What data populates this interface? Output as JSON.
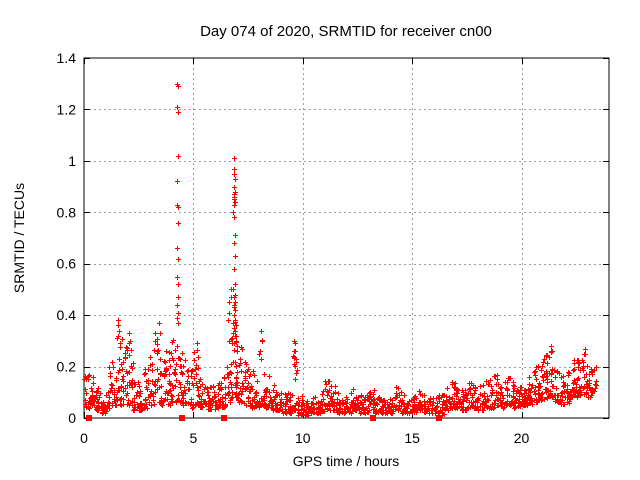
{
  "figure": {
    "background": "#ffffff",
    "border_color": "#000000",
    "grid_color": "#9e9e9e"
  },
  "chart_data": {
    "type": "scatter",
    "title": "Day 074 of 2020, SRMTID for receiver cn00",
    "xlabel": "GPS time / hours",
    "ylabel": "SRMTID / TECUs",
    "xlim": [
      0,
      24
    ],
    "ylim": [
      0,
      1.4
    ],
    "x_tick_values": [
      0,
      5,
      10,
      15,
      20
    ],
    "x_tick_labels": [
      "0",
      "5",
      "10",
      "15",
      "20"
    ],
    "y_tick_values": [
      0,
      0.2,
      0.4,
      0.6,
      0.8,
      1,
      1.2,
      1.4
    ],
    "y_tick_labels": [
      "0",
      "0.2",
      "0.4",
      "0.6",
      "0.8",
      "1",
      "1.2",
      "1.4"
    ],
    "grid": true,
    "legend": "none",
    "marker_color": "#ff0000",
    "seed": 20200074,
    "series": [
      {
        "name": "SRMTID",
        "marker": "plus",
        "band_bins_format": "[x_start_hr, x_end_hr, n_points, y_min, y_max]",
        "band_bins": [
          [
            0.0,
            0.25,
            20,
            0.04,
            0.17
          ],
          [
            0.25,
            0.5,
            20,
            0.05,
            0.16
          ],
          [
            0.5,
            0.75,
            18,
            0.03,
            0.12
          ],
          [
            0.75,
            1.0,
            18,
            0.02,
            0.1
          ],
          [
            1.0,
            1.25,
            20,
            0.04,
            0.2
          ],
          [
            1.25,
            1.5,
            20,
            0.05,
            0.24
          ],
          [
            1.5,
            1.75,
            22,
            0.05,
            0.34
          ],
          [
            1.75,
            2.0,
            20,
            0.05,
            0.28
          ],
          [
            2.0,
            2.25,
            20,
            0.05,
            0.3
          ],
          [
            2.25,
            2.5,
            18,
            0.03,
            0.15
          ],
          [
            2.5,
            2.75,
            18,
            0.03,
            0.12
          ],
          [
            2.75,
            3.0,
            18,
            0.04,
            0.2
          ],
          [
            3.0,
            3.25,
            18,
            0.05,
            0.28
          ],
          [
            3.25,
            3.5,
            20,
            0.05,
            0.34
          ],
          [
            3.5,
            3.75,
            18,
            0.05,
            0.24
          ],
          [
            3.75,
            4.0,
            20,
            0.05,
            0.28
          ],
          [
            4.0,
            4.25,
            20,
            0.06,
            0.31
          ],
          [
            4.25,
            4.5,
            20,
            0.06,
            0.28
          ],
          [
            4.5,
            4.75,
            18,
            0.05,
            0.24
          ],
          [
            4.75,
            5.0,
            18,
            0.04,
            0.19
          ],
          [
            5.0,
            5.25,
            18,
            0.05,
            0.27
          ],
          [
            5.25,
            5.5,
            18,
            0.04,
            0.17
          ],
          [
            5.5,
            5.75,
            18,
            0.03,
            0.14
          ],
          [
            5.75,
            6.0,
            18,
            0.03,
            0.13
          ],
          [
            6.0,
            6.25,
            18,
            0.04,
            0.14
          ],
          [
            6.25,
            6.5,
            18,
            0.04,
            0.17
          ],
          [
            6.5,
            6.75,
            20,
            0.06,
            0.32
          ],
          [
            6.75,
            7.0,
            22,
            0.08,
            0.42
          ],
          [
            7.0,
            7.25,
            20,
            0.06,
            0.28
          ],
          [
            7.25,
            7.5,
            18,
            0.05,
            0.24
          ],
          [
            7.5,
            7.75,
            18,
            0.04,
            0.19
          ],
          [
            7.75,
            8.0,
            18,
            0.04,
            0.17
          ],
          [
            8.0,
            8.25,
            18,
            0.05,
            0.31
          ],
          [
            8.25,
            8.5,
            18,
            0.04,
            0.19
          ],
          [
            8.5,
            8.75,
            18,
            0.03,
            0.13
          ],
          [
            8.75,
            9.0,
            18,
            0.03,
            0.11
          ],
          [
            9.0,
            9.25,
            18,
            0.02,
            0.1
          ],
          [
            9.25,
            9.5,
            18,
            0.02,
            0.11
          ],
          [
            9.5,
            9.75,
            20,
            0.03,
            0.27
          ],
          [
            9.75,
            10.0,
            18,
            0.01,
            0.09
          ],
          [
            10.0,
            10.25,
            16,
            0.01,
            0.07
          ],
          [
            10.25,
            10.5,
            16,
            0.02,
            0.08
          ],
          [
            10.5,
            10.75,
            16,
            0.02,
            0.09
          ],
          [
            10.75,
            11.0,
            16,
            0.02,
            0.11
          ],
          [
            11.0,
            11.25,
            18,
            0.03,
            0.15
          ],
          [
            11.25,
            11.5,
            18,
            0.03,
            0.13
          ],
          [
            11.5,
            11.75,
            16,
            0.02,
            0.1
          ],
          [
            11.75,
            12.0,
            16,
            0.02,
            0.09
          ],
          [
            12.0,
            12.25,
            16,
            0.02,
            0.1
          ],
          [
            12.25,
            12.5,
            16,
            0.03,
            0.12
          ],
          [
            12.5,
            12.75,
            16,
            0.02,
            0.09
          ],
          [
            12.75,
            13.0,
            16,
            0.02,
            0.09
          ],
          [
            13.0,
            13.25,
            16,
            0.03,
            0.11
          ],
          [
            13.25,
            13.5,
            16,
            0.02,
            0.09
          ],
          [
            13.5,
            13.75,
            16,
            0.02,
            0.09
          ],
          [
            13.75,
            14.0,
            16,
            0.02,
            0.08
          ],
          [
            14.0,
            14.25,
            16,
            0.02,
            0.09
          ],
          [
            14.25,
            14.5,
            16,
            0.03,
            0.12
          ],
          [
            14.5,
            14.75,
            16,
            0.02,
            0.09
          ],
          [
            14.75,
            15.0,
            16,
            0.02,
            0.08
          ],
          [
            15.0,
            15.25,
            16,
            0.02,
            0.09
          ],
          [
            15.25,
            15.5,
            16,
            0.03,
            0.11
          ],
          [
            15.5,
            15.75,
            16,
            0.02,
            0.09
          ],
          [
            15.75,
            16.0,
            16,
            0.02,
            0.08
          ],
          [
            16.0,
            16.25,
            16,
            0.02,
            0.09
          ],
          [
            16.25,
            16.5,
            16,
            0.01,
            0.09
          ],
          [
            16.5,
            16.75,
            16,
            0.03,
            0.12
          ],
          [
            16.75,
            17.0,
            18,
            0.04,
            0.14
          ],
          [
            17.0,
            17.25,
            18,
            0.04,
            0.13
          ],
          [
            17.25,
            17.5,
            18,
            0.03,
            0.12
          ],
          [
            17.5,
            17.75,
            18,
            0.04,
            0.15
          ],
          [
            17.75,
            18.0,
            18,
            0.04,
            0.14
          ],
          [
            18.0,
            18.25,
            18,
            0.03,
            0.13
          ],
          [
            18.25,
            18.5,
            18,
            0.04,
            0.15
          ],
          [
            18.5,
            18.75,
            18,
            0.04,
            0.16
          ],
          [
            18.75,
            19.0,
            18,
            0.05,
            0.17
          ],
          [
            19.0,
            19.25,
            18,
            0.04,
            0.14
          ],
          [
            19.25,
            19.5,
            18,
            0.05,
            0.18
          ],
          [
            19.5,
            19.75,
            18,
            0.04,
            0.16
          ],
          [
            19.75,
            20.0,
            18,
            0.04,
            0.14
          ],
          [
            20.0,
            20.25,
            18,
            0.05,
            0.15
          ],
          [
            20.25,
            20.5,
            18,
            0.05,
            0.17
          ],
          [
            20.5,
            20.75,
            18,
            0.06,
            0.22
          ],
          [
            20.75,
            21.0,
            20,
            0.07,
            0.24
          ],
          [
            21.0,
            21.25,
            20,
            0.07,
            0.25
          ],
          [
            21.25,
            21.5,
            20,
            0.08,
            0.27
          ],
          [
            21.5,
            21.75,
            18,
            0.06,
            0.2
          ],
          [
            21.75,
            22.0,
            18,
            0.05,
            0.17
          ],
          [
            22.0,
            22.25,
            18,
            0.06,
            0.19
          ],
          [
            22.25,
            22.5,
            20,
            0.08,
            0.24
          ],
          [
            22.5,
            22.75,
            20,
            0.08,
            0.23
          ],
          [
            22.75,
            23.0,
            20,
            0.09,
            0.25
          ],
          [
            23.0,
            23.2,
            14,
            0.08,
            0.23
          ],
          [
            23.2,
            23.42,
            12,
            0.1,
            0.22
          ]
        ],
        "peak_points": [
          [
            4.27,
            1.3
          ],
          [
            4.29,
            1.29
          ],
          [
            4.27,
            1.21
          ],
          [
            4.28,
            1.19
          ],
          [
            4.28,
            1.02
          ],
          [
            4.27,
            0.92
          ],
          [
            4.26,
            0.83
          ],
          [
            4.29,
            0.82
          ],
          [
            4.28,
            0.76
          ],
          [
            4.27,
            0.66
          ],
          [
            4.28,
            0.62
          ],
          [
            4.26,
            0.55
          ],
          [
            4.28,
            0.52
          ],
          [
            4.3,
            0.47
          ],
          [
            4.27,
            0.44
          ],
          [
            4.29,
            0.41
          ],
          [
            4.26,
            0.39
          ],
          [
            4.28,
            0.37
          ],
          [
            6.85,
            1.01
          ],
          [
            6.87,
            0.97
          ],
          [
            6.84,
            0.95
          ],
          [
            6.88,
            0.93
          ],
          [
            6.86,
            0.9
          ],
          [
            6.89,
            0.88
          ],
          [
            6.85,
            0.87
          ],
          [
            6.87,
            0.86
          ],
          [
            6.84,
            0.85
          ],
          [
            6.88,
            0.84
          ],
          [
            6.86,
            0.83
          ],
          [
            6.83,
            0.8
          ],
          [
            6.87,
            0.78
          ],
          [
            6.9,
            0.71
          ],
          [
            6.86,
            0.68
          ],
          [
            6.88,
            0.63
          ],
          [
            6.85,
            0.58
          ],
          [
            6.92,
            0.52
          ],
          [
            6.83,
            0.5
          ],
          [
            6.88,
            0.48
          ],
          [
            6.86,
            0.47
          ],
          [
            6.9,
            0.45
          ],
          [
            6.84,
            0.44
          ],
          [
            6.87,
            0.43
          ],
          [
            6.91,
            0.42
          ],
          [
            6.85,
            0.4
          ],
          [
            6.89,
            0.38
          ],
          [
            6.82,
            0.37
          ],
          [
            6.93,
            0.36
          ],
          [
            6.86,
            0.35
          ],
          [
            6.8,
            0.33
          ],
          [
            6.95,
            0.32
          ],
          [
            6.78,
            0.31
          ],
          [
            6.97,
            0.3
          ],
          [
            6.75,
            0.29
          ],
          [
            7.0,
            0.28
          ],
          [
            6.62,
            0.45
          ],
          [
            6.65,
            0.41
          ],
          [
            6.58,
            0.38
          ],
          [
            6.7,
            0.47
          ],
          [
            6.72,
            0.5
          ],
          [
            1.55,
            0.38
          ],
          [
            1.57,
            0.36
          ],
          [
            1.62,
            0.34
          ],
          [
            1.52,
            0.31
          ],
          [
            1.65,
            0.29
          ],
          [
            2.05,
            0.33
          ],
          [
            2.08,
            0.3
          ],
          [
            3.45,
            0.37
          ],
          [
            3.47,
            0.33
          ],
          [
            5.15,
            0.29
          ],
          [
            8.1,
            0.34
          ],
          [
            8.12,
            0.3
          ],
          [
            9.62,
            0.3
          ],
          [
            9.65,
            0.29
          ],
          [
            9.63,
            0.26
          ],
          [
            9.67,
            0.23
          ],
          [
            9.6,
            0.21
          ],
          [
            21.35,
            0.28
          ],
          [
            21.38,
            0.26
          ],
          [
            22.9,
            0.27
          ],
          [
            22.85,
            0.25
          ]
        ]
      },
      {
        "name": "baseline flags",
        "marker": "filled-square",
        "points": [
          [
            0.23,
            0
          ],
          [
            4.5,
            0
          ],
          [
            6.4,
            0
          ],
          [
            13.2,
            0
          ],
          [
            16.25,
            0
          ]
        ]
      }
    ]
  }
}
